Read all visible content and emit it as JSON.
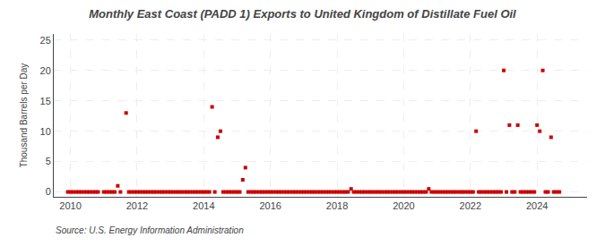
{
  "chart_data": {
    "type": "scatter",
    "title": "Monthly East Coast (PADD 1) Exports to United Kingdom of Distillate Fuel Oil",
    "ylabel": "Thousand Barrels per Day",
    "annotations": [
      "Source: U.S. Energy Information Administration"
    ],
    "color": "#cc0000",
    "marker": "square",
    "grid": true,
    "xlim": [
      2009.5,
      2025.5
    ],
    "ylim": [
      -0.8,
      26
    ],
    "xticks": [
      2010,
      2012,
      2014,
      2016,
      2018,
      2020,
      2022,
      2024
    ],
    "yticks": [
      0,
      5,
      10,
      15,
      20,
      25
    ],
    "x": [
      2009.92,
      2010.0,
      2010.08,
      2010.17,
      2010.25,
      2010.33,
      2010.42,
      2010.5,
      2010.58,
      2010.67,
      2010.75,
      2010.83,
      2011.0,
      2011.08,
      2011.17,
      2011.25,
      2011.33,
      2011.42,
      2011.5,
      2011.67,
      2011.75,
      2011.83,
      2011.92,
      2012.0,
      2012.08,
      2012.17,
      2012.25,
      2012.33,
      2012.42,
      2012.5,
      2012.58,
      2012.67,
      2012.75,
      2012.83,
      2012.92,
      2013.0,
      2013.08,
      2013.17,
      2013.25,
      2013.33,
      2013.42,
      2013.5,
      2013.58,
      2013.67,
      2013.75,
      2013.83,
      2013.92,
      2014.0,
      2014.08,
      2014.17,
      2014.25,
      2014.33,
      2014.42,
      2014.5,
      2014.58,
      2014.67,
      2014.75,
      2014.83,
      2014.92,
      2015.0,
      2015.08,
      2015.17,
      2015.25,
      2015.33,
      2015.42,
      2015.5,
      2015.58,
      2015.67,
      2015.75,
      2015.83,
      2015.92,
      2016.0,
      2016.08,
      2016.17,
      2016.25,
      2016.33,
      2016.42,
      2016.5,
      2016.58,
      2016.67,
      2016.75,
      2016.83,
      2016.92,
      2017.0,
      2017.08,
      2017.17,
      2017.25,
      2017.33,
      2017.42,
      2017.5,
      2017.58,
      2017.67,
      2017.75,
      2017.83,
      2017.92,
      2018.0,
      2018.08,
      2018.17,
      2018.25,
      2018.33,
      2018.42,
      2018.5,
      2018.58,
      2018.67,
      2018.75,
      2018.83,
      2018.92,
      2019.0,
      2019.08,
      2019.17,
      2019.25,
      2019.33,
      2019.42,
      2019.5,
      2019.58,
      2019.67,
      2019.75,
      2019.83,
      2019.92,
      2020.0,
      2020.08,
      2020.17,
      2020.25,
      2020.33,
      2020.42,
      2020.5,
      2020.58,
      2020.67,
      2020.75,
      2020.83,
      2020.92,
      2021.0,
      2021.08,
      2021.17,
      2021.25,
      2021.33,
      2021.42,
      2021.5,
      2021.58,
      2021.67,
      2021.75,
      2021.83,
      2021.92,
      2022.0,
      2022.08,
      2022.17,
      2022.25,
      2022.33,
      2022.42,
      2022.5,
      2022.58,
      2022.67,
      2022.75,
      2022.83,
      2022.92,
      2023.0,
      2023.08,
      2023.17,
      2023.25,
      2023.33,
      2023.42,
      2023.5,
      2023.58,
      2023.67,
      2023.75,
      2023.83,
      2023.92,
      2024.0,
      2024.08,
      2024.17,
      2024.25,
      2024.33,
      2024.42,
      2024.5,
      2024.58,
      2024.67
    ],
    "values": [
      0.0,
      0.0,
      0.0,
      0.0,
      0.0,
      0.0,
      0.0,
      0.0,
      0.0,
      0.0,
      0.0,
      0.0,
      0.0,
      0.0,
      0.0,
      0.0,
      0.0,
      1.0,
      0.0,
      13.0,
      0.0,
      0.0,
      0.0,
      0.0,
      0.0,
      0.0,
      0.0,
      0.0,
      0.0,
      0.0,
      0.0,
      0.0,
      0.0,
      0.0,
      0.0,
      0.0,
      0.0,
      0.0,
      0.0,
      0.0,
      0.0,
      0.0,
      0.0,
      0.0,
      0.0,
      0.0,
      0.0,
      0.0,
      0.0,
      0.0,
      14.0,
      0.0,
      9.0,
      10.0,
      0.0,
      0.0,
      0.0,
      0.0,
      0.0,
      0.0,
      0.0,
      2.0,
      4.0,
      0.0,
      0.0,
      0.0,
      0.0,
      0.0,
      0.0,
      0.0,
      0.0,
      0.0,
      0.0,
      0.0,
      0.0,
      0.0,
      0.0,
      0.0,
      0.0,
      0.0,
      0.0,
      0.0,
      0.0,
      0.0,
      0.0,
      0.0,
      0.0,
      0.0,
      0.0,
      0.0,
      0.0,
      0.0,
      0.0,
      0.0,
      0.0,
      0.0,
      0.0,
      0.0,
      0.0,
      0.0,
      0.5,
      0.0,
      0.0,
      0.0,
      0.0,
      0.0,
      0.0,
      0.0,
      0.0,
      0.0,
      0.0,
      0.0,
      0.0,
      0.0,
      0.0,
      0.0,
      0.0,
      0.0,
      0.0,
      0.0,
      0.0,
      0.0,
      0.0,
      0.0,
      0.0,
      0.0,
      0.0,
      0.0,
      0.5,
      0.0,
      0.0,
      0.0,
      0.0,
      0.0,
      0.0,
      0.0,
      0.0,
      0.0,
      0.0,
      0.0,
      0.0,
      0.0,
      0.0,
      0.0,
      0.0,
      10.0,
      0.0,
      0.0,
      0.0,
      0.0,
      0.0,
      0.0,
      0.0,
      0.0,
      0.0,
      20.0,
      0.0,
      11.0,
      0.0,
      0.0,
      11.0,
      0.0,
      0.0,
      0.0,
      0.0,
      0.0,
      0.0,
      11.0,
      10.0,
      20.0,
      0.0,
      0.0,
      9.0,
      0.0,
      0.0,
      0.0
    ]
  }
}
